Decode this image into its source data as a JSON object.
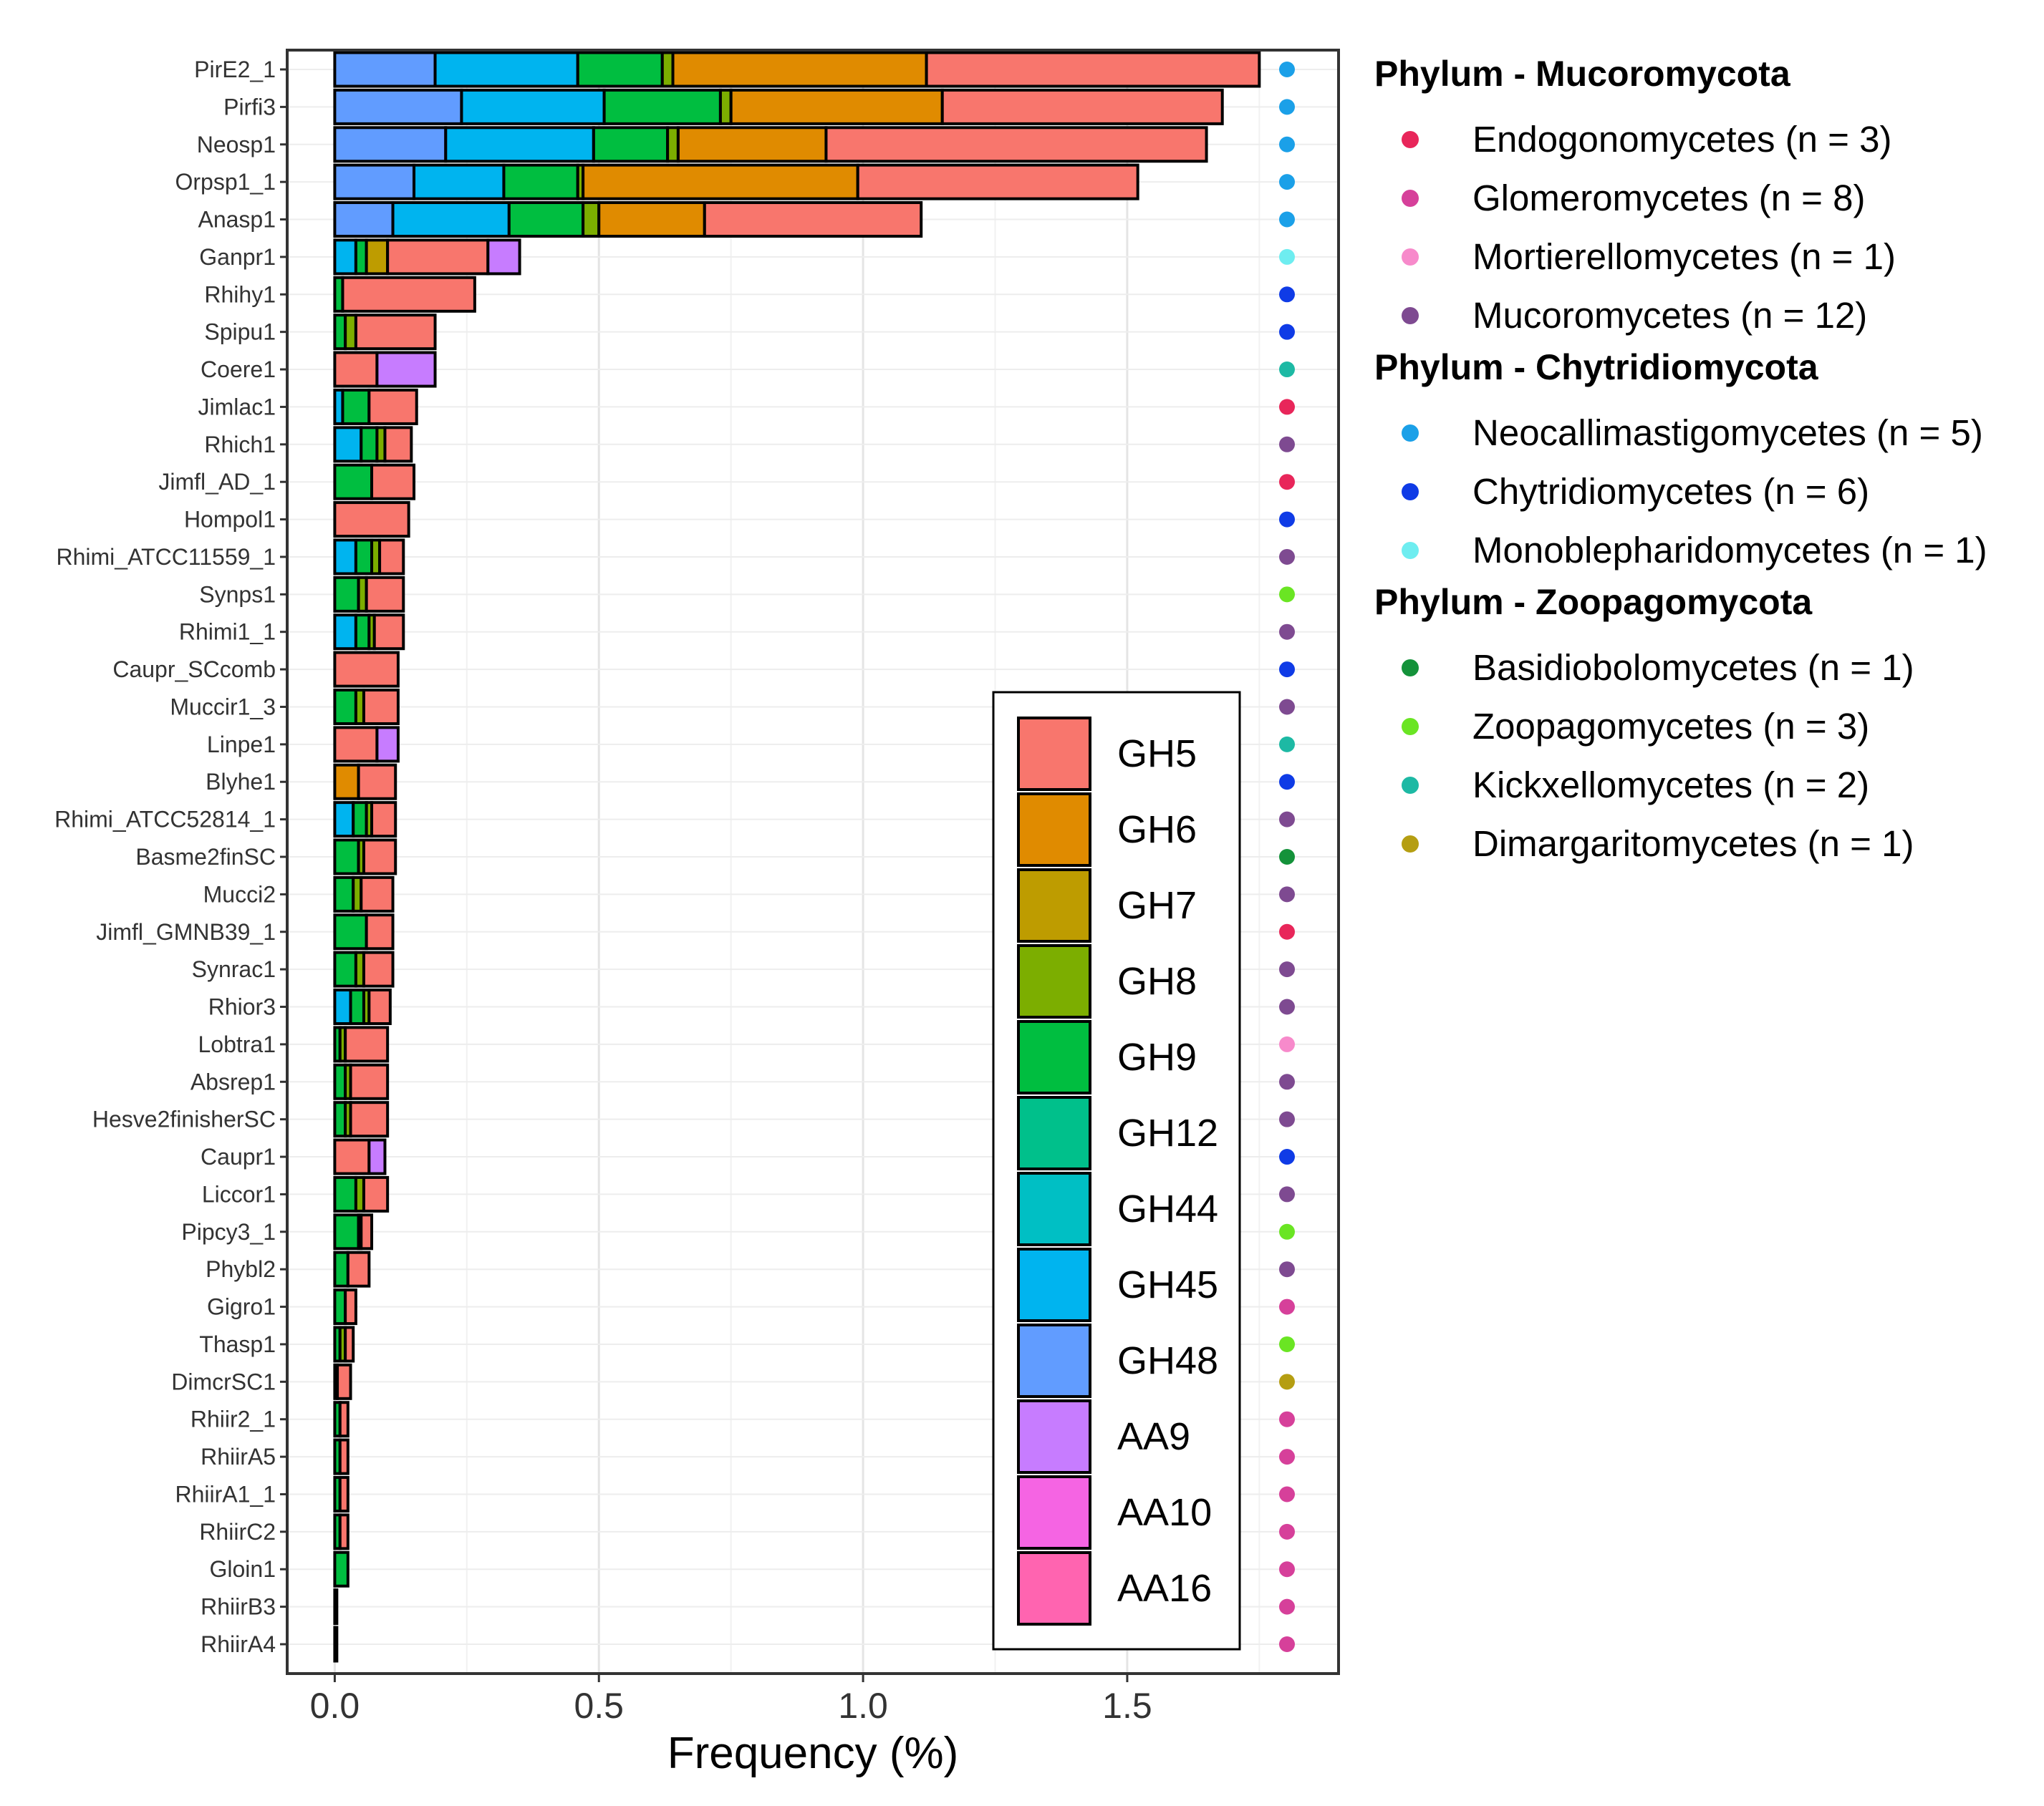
{
  "chart_data": {
    "type": "bar",
    "orientation": "horizontal",
    "stacked": true,
    "xlabel": "Frequency (%)",
    "ylabel": "",
    "xlim": [
      -0.09,
      1.9
    ],
    "xticks": [
      "0.0",
      "0.5",
      "1.0",
      "1.5"
    ],
    "grid": true,
    "legend_position": "inside-bottom-right",
    "component_order": [
      "GH48",
      "GH45",
      "GH44",
      "GH12",
      "GH9",
      "GH8",
      "GH7",
      "GH6",
      "GH5",
      "AA9",
      "AA10",
      "AA16"
    ],
    "series": [
      {
        "name": "GH5",
        "color": "#F8766D"
      },
      {
        "name": "GH6",
        "color": "#E08B00"
      },
      {
        "name": "GH7",
        "color": "#BE9C00"
      },
      {
        "name": "GH8",
        "color": "#7CAE00"
      },
      {
        "name": "GH9",
        "color": "#00BE40"
      },
      {
        "name": "GH12",
        "color": "#00C08B"
      },
      {
        "name": "GH44",
        "color": "#00BFC4"
      },
      {
        "name": "GH45",
        "color": "#00B4EF"
      },
      {
        "name": "GH48",
        "color": "#619CFF"
      },
      {
        "name": "AA9",
        "color": "#C77CFF"
      },
      {
        "name": "AA10",
        "color": "#F564E3"
      },
      {
        "name": "AA16",
        "color": "#FF64B0"
      }
    ],
    "categories": [
      {
        "name": "PirE2_1",
        "class": "neo",
        "segments": {
          "GH48": 0.19,
          "GH45": 0.27,
          "GH9": 0.16,
          "GH8": 0.02,
          "GH6": 0.48,
          "GH5": 0.63
        }
      },
      {
        "name": "Pirfi3",
        "class": "neo",
        "segments": {
          "GH48": 0.24,
          "GH45": 0.27,
          "GH9": 0.22,
          "GH8": 0.02,
          "GH6": 0.4,
          "GH5": 0.53
        }
      },
      {
        "name": "Neosp1",
        "class": "neo",
        "segments": {
          "GH48": 0.21,
          "GH45": 0.28,
          "GH9": 0.14,
          "GH8": 0.02,
          "GH6": 0.28,
          "GH5": 0.72
        }
      },
      {
        "name": "Orpsp1_1",
        "class": "neo",
        "segments": {
          "GH48": 0.15,
          "GH45": 0.17,
          "GH9": 0.14,
          "GH8": 0.01,
          "GH6": 0.52,
          "GH5": 0.53
        }
      },
      {
        "name": "Anasp1",
        "class": "neo",
        "segments": {
          "GH48": 0.11,
          "GH45": 0.22,
          "GH9": 0.14,
          "GH8": 0.03,
          "GH6": 0.2,
          "GH5": 0.41
        }
      },
      {
        "name": "Ganpr1",
        "class": "mono",
        "segments": {
          "AA9": 0.06,
          "GH45": 0.04,
          "GH9": 0.02,
          "GH7": 0.04,
          "GH5": 0.19
        }
      },
      {
        "name": "Rhihy1",
        "class": "chy",
        "segments": {
          "GH9": 0.015,
          "GH5": 0.25
        }
      },
      {
        "name": "Spipu1",
        "class": "chy",
        "segments": {
          "GH9": 0.02,
          "GH8": 0.02,
          "GH5": 0.15
        }
      },
      {
        "name": "Coere1",
        "class": "kick",
        "segments": {
          "AA9": 0.11,
          "GH5": 0.08
        }
      },
      {
        "name": "Jimlac1",
        "class": "endo",
        "segments": {
          "GH45": 0.015,
          "GH9": 0.05,
          "GH5": 0.09
        }
      },
      {
        "name": "Rhich1",
        "class": "muc",
        "segments": {
          "GH45": 0.05,
          "GH9": 0.03,
          "GH8": 0.015,
          "GH5": 0.05
        }
      },
      {
        "name": "Jimfl_AD_1",
        "class": "endo",
        "segments": {
          "GH9": 0.07,
          "GH5": 0.08
        }
      },
      {
        "name": "Hompol1",
        "class": "chy",
        "segments": {
          "GH5": 0.14
        }
      },
      {
        "name": "Rhimi_ATCC11559_1",
        "class": "muc",
        "segments": {
          "GH45": 0.04,
          "GH9": 0.03,
          "GH8": 0.015,
          "GH5": 0.045
        }
      },
      {
        "name": "Synps1",
        "class": "zoo",
        "segments": {
          "GH9": 0.045,
          "GH8": 0.015,
          "GH5": 0.07
        }
      },
      {
        "name": "Rhimi1_1",
        "class": "muc",
        "segments": {
          "GH45": 0.04,
          "GH9": 0.025,
          "GH8": 0.01,
          "GH5": 0.055
        }
      },
      {
        "name": "Caupr_SCcomb",
        "class": "chy",
        "segments": {
          "GH5": 0.12
        }
      },
      {
        "name": "Muccir1_3",
        "class": "muc",
        "segments": {
          "GH9": 0.04,
          "GH8": 0.015,
          "GH5": 0.065
        }
      },
      {
        "name": "Linpe1",
        "class": "kick",
        "segments": {
          "AA9": 0.04,
          "GH5": 0.08
        }
      },
      {
        "name": "Blyhe1",
        "class": "chy",
        "segments": {
          "GH6": 0.045,
          "GH5": 0.07
        }
      },
      {
        "name": "Rhimi_ATCC52814_1",
        "class": "muc",
        "segments": {
          "GH45": 0.035,
          "GH9": 0.025,
          "GH8": 0.01,
          "GH5": 0.045
        }
      },
      {
        "name": "Basme2finSC",
        "class": "basi",
        "segments": {
          "GH9": 0.045,
          "GH8": 0.01,
          "GH5": 0.06
        }
      },
      {
        "name": "Mucci2",
        "class": "muc",
        "segments": {
          "GH9": 0.035,
          "GH8": 0.015,
          "GH5": 0.06
        }
      },
      {
        "name": "Jimfl_GMNB39_1",
        "class": "endo",
        "segments": {
          "GH9": 0.06,
          "GH5": 0.05
        }
      },
      {
        "name": "Synrac1",
        "class": "muc",
        "segments": {
          "GH9": 0.04,
          "GH8": 0.015,
          "GH5": 0.055
        }
      },
      {
        "name": "Rhior3",
        "class": "muc",
        "segments": {
          "GH45": 0.03,
          "GH9": 0.025,
          "GH8": 0.01,
          "GH5": 0.04
        }
      },
      {
        "name": "Lobtra1",
        "class": "mort",
        "segments": {
          "GH9": 0.01,
          "GH8": 0.01,
          "GH5": 0.08
        }
      },
      {
        "name": "Absrep1",
        "class": "muc",
        "segments": {
          "GH9": 0.02,
          "GH8": 0.01,
          "GH5": 0.07
        }
      },
      {
        "name": "Hesve2finisherSC",
        "class": "muc",
        "segments": {
          "GH9": 0.02,
          "GH8": 0.01,
          "GH5": 0.07
        }
      },
      {
        "name": "Caupr1",
        "class": "chy",
        "segments": {
          "AA9": 0.03,
          "GH5": 0.065
        }
      },
      {
        "name": "Liccor1",
        "class": "muc",
        "segments": {
          "GH9": 0.04,
          "GH8": 0.015,
          "GH5": 0.045
        }
      },
      {
        "name": "Pipcy3_1",
        "class": "zoo",
        "segments": {
          "GH9": 0.045,
          "GH8": 0.005,
          "GH5": 0.02
        }
      },
      {
        "name": "Phybl2",
        "class": "muc",
        "segments": {
          "GH9": 0.025,
          "GH5": 0.04
        }
      },
      {
        "name": "Gigro1",
        "class": "glo",
        "segments": {
          "GH9": 0.02,
          "GH5": 0.02
        }
      },
      {
        "name": "Thasp1",
        "class": "zoo",
        "segments": {
          "GH8": 0.01,
          "GH9": 0.01,
          "GH5": 0.015
        }
      },
      {
        "name": "DimcrSC1",
        "class": "dim",
        "segments": {
          "GH7": 0.005,
          "GH5": 0.025
        }
      },
      {
        "name": "Rhiir2_1",
        "class": "glo",
        "segments": {
          "GH9": 0.01,
          "GH5": 0.015
        }
      },
      {
        "name": "RhiirA5",
        "class": "glo",
        "segments": {
          "GH9": 0.01,
          "GH5": 0.015
        }
      },
      {
        "name": "RhiirA1_1",
        "class": "glo",
        "segments": {
          "GH9": 0.01,
          "GH5": 0.015
        }
      },
      {
        "name": "RhiirC2",
        "class": "glo",
        "segments": {
          "GH9": 0.01,
          "GH5": 0.015
        }
      },
      {
        "name": "Gloin1",
        "class": "glo",
        "segments": {
          "GH9": 0.025
        }
      },
      {
        "name": "RhiirB3",
        "class": "glo",
        "segments": {
          "GH9": 0.004
        }
      },
      {
        "name": "RhiirA4",
        "class": "glo",
        "segments": {
          "GH9": 0.004
        }
      }
    ],
    "taxonomy_legend": [
      {
        "phylum": "Phylum - Mucoromycota",
        "classes": [
          {
            "key": "endo",
            "label": "Endogonomycetes (n = 3)",
            "color": "#E8265A"
          },
          {
            "key": "glo",
            "label": "Glomeromycetes (n = 8)",
            "color": "#D6409A"
          },
          {
            "key": "mort",
            "label": "Mortierellomycetes (n = 1)",
            "color": "#F78ACB"
          },
          {
            "key": "muc",
            "label": "Mucoromycetes (n = 12)",
            "color": "#7E4A91"
          }
        ]
      },
      {
        "phylum": "Phylum - Chytridiomycota",
        "classes": [
          {
            "key": "neo",
            "label": "Neocallimastigomycetes (n = 5)",
            "color": "#1BA0E8"
          },
          {
            "key": "chy",
            "label": "Chytridiomycetes (n = 6)",
            "color": "#0F3BE6"
          },
          {
            "key": "mono",
            "label": "Monoblepharidomycetes (n = 1)",
            "color": "#6EEDF0"
          }
        ]
      },
      {
        "phylum": "Phylum - Zoopagomycota",
        "classes": [
          {
            "key": "basi",
            "label": "Basidiobolomycetes (n = 1)",
            "color": "#14923A"
          },
          {
            "key": "zoo",
            "label": "Zoopagomycetes (n = 3)",
            "color": "#6AE523"
          },
          {
            "key": "kick",
            "label": "Kickxellomycetes (n = 2)",
            "color": "#1DB9A4"
          },
          {
            "key": "dim",
            "label": "Dimargaritomycetes (n = 1)",
            "color": "#B59E12"
          }
        ]
      }
    ]
  }
}
